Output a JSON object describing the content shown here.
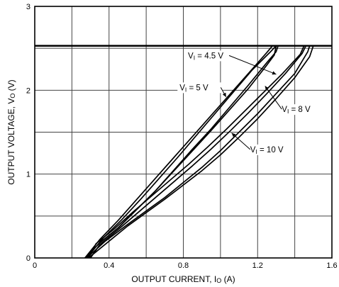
{
  "chart_data": {
    "type": "line",
    "title": "",
    "xlabel": "OUTPUT CURRENT, I",
    "xlabel_sub": "O",
    "xlabel_unit": " (A)",
    "ylabel": "OUTPUT VOLTAGE, V",
    "ylabel_sub": "O",
    "ylabel_unit": " (V)",
    "xlim": [
      0,
      1.6
    ],
    "ylim": [
      0,
      3
    ],
    "xticks": [
      0,
      0.4,
      0.8,
      1.2,
      1.6
    ],
    "xtick_labels": [
      "0",
      "0.4",
      "0.8",
      "1.2",
      "1.6"
    ],
    "xgrid": [
      0,
      0.2,
      0.4,
      0.6,
      0.8,
      1.0,
      1.2,
      1.4,
      1.6
    ],
    "yticks": [
      0,
      1,
      2,
      3
    ],
    "ytick_labels": [
      "0",
      "1",
      "2",
      "3"
    ],
    "ygrid": [
      0,
      0.5,
      1,
      1.5,
      2,
      2.5,
      3
    ],
    "grid": true,
    "series": [
      {
        "points": [
          [
            0.27,
            0
          ],
          [
            0.35,
            0.18
          ],
          [
            0.45,
            0.36
          ],
          [
            0.55,
            0.58
          ],
          [
            0.65,
            0.8
          ],
          [
            0.75,
            1.05
          ],
          [
            0.85,
            1.3
          ],
          [
            0.95,
            1.54
          ],
          [
            1.05,
            1.8
          ],
          [
            1.15,
            2.06
          ],
          [
            1.25,
            2.33
          ],
          [
            1.3,
            2.46
          ],
          [
            1.31,
            2.53
          ],
          [
            1.3,
            2.53
          ],
          [
            1.27,
            2.46
          ],
          [
            1.17,
            2.24
          ],
          [
            1.07,
            1.98
          ],
          [
            0.97,
            1.72
          ],
          [
            0.87,
            1.46
          ],
          [
            0.77,
            1.2
          ],
          [
            0.67,
            0.95
          ],
          [
            0.57,
            0.7
          ],
          [
            0.47,
            0.46
          ],
          [
            0.37,
            0.24
          ],
          [
            0.28,
            0
          ]
        ]
      },
      {
        "points": [
          [
            0.27,
            0
          ],
          [
            0.35,
            0.18
          ],
          [
            0.45,
            0.36
          ],
          [
            0.55,
            0.58
          ],
          [
            0.65,
            0.8
          ],
          [
            0.75,
            1.04
          ],
          [
            0.85,
            1.28
          ],
          [
            0.95,
            1.52
          ],
          [
            1.05,
            1.77
          ],
          [
            1.15,
            2.02
          ],
          [
            1.25,
            2.3
          ],
          [
            1.29,
            2.42
          ],
          [
            1.3,
            2.53
          ],
          [
            1.28,
            2.53
          ],
          [
            1.25,
            2.45
          ],
          [
            1.15,
            2.2
          ],
          [
            1.05,
            1.95
          ],
          [
            0.95,
            1.7
          ],
          [
            0.85,
            1.45
          ],
          [
            0.75,
            1.2
          ],
          [
            0.65,
            0.95
          ],
          [
            0.55,
            0.7
          ],
          [
            0.45,
            0.45
          ],
          [
            0.35,
            0.22
          ],
          [
            0.27,
            0
          ]
        ]
      },
      {
        "points": [
          [
            0.28,
            0
          ],
          [
            0.38,
            0.2
          ],
          [
            0.5,
            0.4
          ],
          [
            0.6,
            0.56
          ],
          [
            0.7,
            0.72
          ],
          [
            0.8,
            0.9
          ],
          [
            0.9,
            1.08
          ],
          [
            1.0,
            1.28
          ],
          [
            1.1,
            1.5
          ],
          [
            1.2,
            1.72
          ],
          [
            1.3,
            1.96
          ],
          [
            1.4,
            2.2
          ],
          [
            1.47,
            2.46
          ],
          [
            1.48,
            2.53
          ],
          [
            1.45,
            2.53
          ],
          [
            1.43,
            2.43
          ],
          [
            1.33,
            2.19
          ],
          [
            1.23,
            1.97
          ],
          [
            1.13,
            1.75
          ],
          [
            1.03,
            1.53
          ],
          [
            0.93,
            1.32
          ],
          [
            0.83,
            1.12
          ],
          [
            0.73,
            0.93
          ],
          [
            0.63,
            0.74
          ],
          [
            0.53,
            0.55
          ],
          [
            0.43,
            0.35
          ],
          [
            0.33,
            0.17
          ],
          [
            0.29,
            0
          ]
        ]
      },
      {
        "points": [
          [
            0.29,
            0
          ],
          [
            0.4,
            0.2
          ],
          [
            0.5,
            0.38
          ],
          [
            0.6,
            0.54
          ],
          [
            0.7,
            0.7
          ],
          [
            0.8,
            0.87
          ],
          [
            0.9,
            1.04
          ],
          [
            1.0,
            1.23
          ],
          [
            1.1,
            1.44
          ],
          [
            1.2,
            1.66
          ],
          [
            1.3,
            1.9
          ],
          [
            1.4,
            2.15
          ],
          [
            1.48,
            2.4
          ],
          [
            1.5,
            2.53
          ],
          [
            1.46,
            2.53
          ],
          [
            1.44,
            2.44
          ],
          [
            1.35,
            2.2
          ],
          [
            1.25,
            1.96
          ],
          [
            1.15,
            1.73
          ],
          [
            1.05,
            1.51
          ],
          [
            0.95,
            1.3
          ],
          [
            0.85,
            1.1
          ],
          [
            0.75,
            0.91
          ],
          [
            0.65,
            0.72
          ],
          [
            0.55,
            0.53
          ],
          [
            0.45,
            0.34
          ],
          [
            0.35,
            0.16
          ],
          [
            0.3,
            0
          ]
        ]
      }
    ],
    "limit_line": {
      "y": 2.53
    },
    "annotations": [
      {
        "label": "V",
        "sub": "I",
        "text": " = 4.5 V",
        "x": 0.825,
        "y": 2.38,
        "px": 1.3,
        "py": 2.19
      },
      {
        "label": "V",
        "sub": "I",
        "text": " = 5 V",
        "x": 0.78,
        "y": 2.0,
        "px": 1.03,
        "py": 1.92
      },
      {
        "label": "V",
        "sub": "I",
        "text": " = 8 V",
        "x": 1.33,
        "y": 1.74,
        "px": 1.24,
        "py": 2.05
      },
      {
        "label": "V",
        "sub": "I",
        "text": " = 10 V",
        "x": 1.16,
        "y": 1.26,
        "px": 1.06,
        "py": 1.49
      }
    ],
    "colors": {
      "grid": "#444444",
      "curve": "#000000",
      "frame": "#000000"
    }
  }
}
